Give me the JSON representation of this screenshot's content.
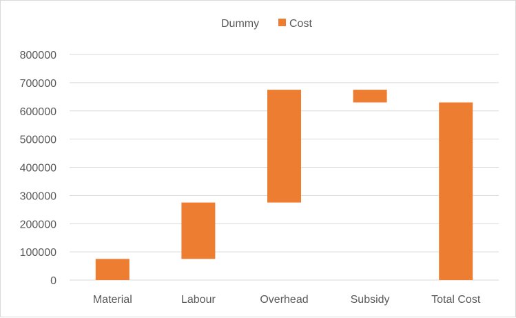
{
  "chart_data": {
    "type": "bar",
    "stacked": true,
    "categories": [
      "Material",
      "Labour",
      "Overhead",
      "Subsidy",
      "Total Cost"
    ],
    "series": [
      {
        "name": "Dummy",
        "values": [
          0,
          75000,
          275000,
          630000,
          0
        ],
        "color": "none"
      },
      {
        "name": "Cost",
        "values": [
          75000,
          200000,
          400000,
          45000,
          630000
        ],
        "color": "#ED7D31"
      }
    ],
    "yticks": [
      "0",
      "100000",
      "200000",
      "300000",
      "400000",
      "500000",
      "600000",
      "700000",
      "800000"
    ],
    "ylim": [
      0,
      800000
    ],
    "grid": true,
    "legend_position": "top"
  }
}
